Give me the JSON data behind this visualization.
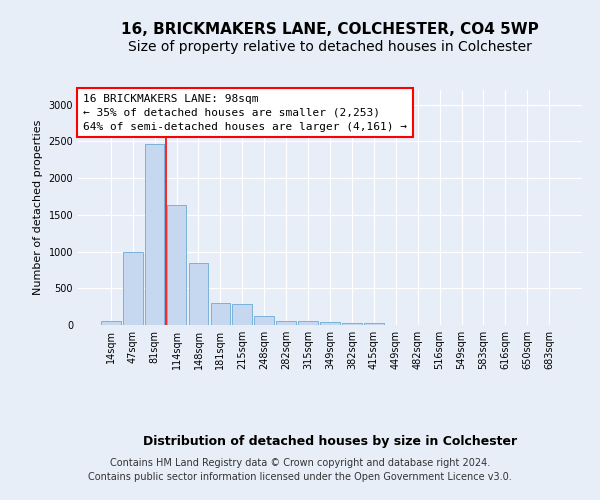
{
  "title": "16, BRICKMAKERS LANE, COLCHESTER, CO4 5WP",
  "subtitle": "Size of property relative to detached houses in Colchester",
  "xlabel": "Distribution of detached houses by size in Colchester",
  "ylabel": "Number of detached properties",
  "bar_color": "#c5d8f0",
  "bar_edge_color": "#6aaad4",
  "background_color": "#e8eef8",
  "grid_color": "#ffffff",
  "categories": [
    "14sqm",
    "47sqm",
    "81sqm",
    "114sqm",
    "148sqm",
    "181sqm",
    "215sqm",
    "248sqm",
    "282sqm",
    "315sqm",
    "349sqm",
    "382sqm",
    "415sqm",
    "449sqm",
    "482sqm",
    "516sqm",
    "549sqm",
    "583sqm",
    "616sqm",
    "650sqm",
    "683sqm"
  ],
  "values": [
    60,
    1000,
    2460,
    1640,
    840,
    295,
    290,
    120,
    55,
    50,
    40,
    25,
    30,
    5,
    0,
    0,
    0,
    0,
    0,
    0,
    0
  ],
  "red_line_index": 2.5,
  "annotation_line1": "16 BRICKMAKERS LANE: 98sqm",
  "annotation_line2": "← 35% of detached houses are smaller (2,253)",
  "annotation_line3": "64% of semi-detached houses are larger (4,161) →",
  "footer_line1": "Contains HM Land Registry data © Crown copyright and database right 2024.",
  "footer_line2": "Contains public sector information licensed under the Open Government Licence v3.0.",
  "ylim": [
    0,
    3200
  ],
  "yticks": [
    0,
    500,
    1000,
    1500,
    2000,
    2500,
    3000
  ],
  "title_fontsize": 11,
  "subtitle_fontsize": 10,
  "xlabel_fontsize": 9,
  "ylabel_fontsize": 8,
  "tick_fontsize": 7,
  "annotation_fontsize": 8,
  "footer_fontsize": 7
}
